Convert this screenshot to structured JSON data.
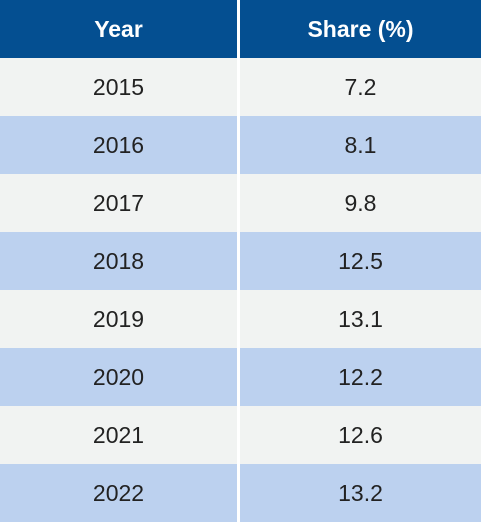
{
  "chart_data": {
    "type": "table",
    "columns": [
      "Year",
      "Share (%)"
    ],
    "rows": [
      [
        "2015",
        "7.2"
      ],
      [
        "2016",
        "8.1"
      ],
      [
        "2017",
        "9.8"
      ],
      [
        "2018",
        "12.5"
      ],
      [
        "2019",
        "13.1"
      ],
      [
        "2020",
        "12.2"
      ],
      [
        "2021",
        "12.6"
      ],
      [
        "2022",
        "13.2"
      ]
    ]
  },
  "colors": {
    "header_bg": "#044f91",
    "header_text": "#ffffff",
    "row_light": "#f1f3f2",
    "row_blue": "#bcd1ef",
    "text": "#222222"
  }
}
